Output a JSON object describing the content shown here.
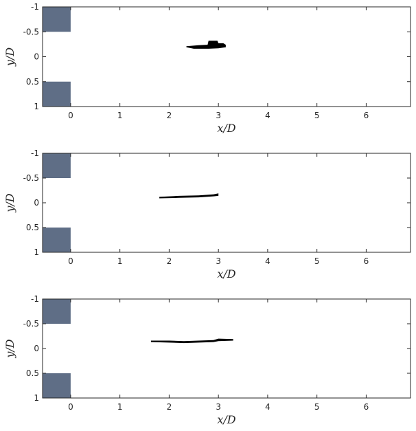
{
  "chart_data": [
    {
      "type": "area",
      "xlabel": "x/D",
      "ylabel": "y/D",
      "xlim": [
        -0.57,
        6.9
      ],
      "ylim": [
        -1,
        1
      ],
      "y_reversed": true,
      "x_ticks": [
        0,
        1,
        2,
        3,
        4,
        5,
        6
      ],
      "x_tick_labels": [
        "0",
        "1",
        "2",
        "3",
        "4",
        "5",
        "6"
      ],
      "y_ticks": [
        -1,
        -0.5,
        0,
        0.5,
        1
      ],
      "y_tick_labels": [
        "-1",
        "-0.5",
        "0",
        "0.5",
        "1"
      ],
      "grid": false,
      "blocks": [
        {
          "x": [
            -0.57,
            0
          ],
          "y": [
            -1,
            -0.5
          ],
          "color": "#5f6e86"
        },
        {
          "x": [
            -0.57,
            0
          ],
          "y": [
            0.5,
            1
          ],
          "color": "#5f6e86"
        }
      ],
      "region": {
        "color": "#000000",
        "upper": [
          [
            2.35,
            -0.21
          ],
          [
            2.6,
            -0.23
          ],
          [
            2.78,
            -0.24
          ],
          [
            2.8,
            -0.32
          ],
          [
            2.98,
            -0.32
          ],
          [
            3.0,
            -0.27
          ],
          [
            3.1,
            -0.27
          ],
          [
            3.15,
            -0.24
          ],
          [
            3.15,
            -0.19
          ],
          [
            3.0,
            -0.17
          ]
        ],
        "lower": [
          [
            2.35,
            -0.19
          ],
          [
            2.5,
            -0.16
          ],
          [
            2.8,
            -0.16
          ],
          [
            3.0,
            -0.17
          ]
        ]
      }
    },
    {
      "type": "area",
      "xlabel": "x/D",
      "ylabel": "y/D",
      "xlim": [
        -0.57,
        6.9
      ],
      "ylim": [
        -1,
        1
      ],
      "y_reversed": true,
      "x_ticks": [
        0,
        1,
        2,
        3,
        4,
        5,
        6
      ],
      "x_tick_labels": [
        "0",
        "1",
        "2",
        "3",
        "4",
        "5",
        "6"
      ],
      "y_ticks": [
        -1,
        -0.5,
        0,
        0.5,
        1
      ],
      "y_tick_labels": [
        "-1",
        "-0.5",
        "0",
        "0.5",
        "1"
      ],
      "grid": false,
      "blocks": [
        {
          "x": [
            -0.57,
            0
          ],
          "y": [
            -1,
            -0.5
          ],
          "color": "#5f6e86"
        },
        {
          "x": [
            -0.57,
            0
          ],
          "y": [
            0.5,
            1
          ],
          "color": "#5f6e86"
        }
      ],
      "region": {
        "color": "#000000",
        "upper": [
          [
            1.8,
            -0.12
          ],
          [
            2.2,
            -0.14
          ],
          [
            2.6,
            -0.15
          ],
          [
            2.9,
            -0.17
          ],
          [
            3.0,
            -0.19
          ]
        ],
        "lower": [
          [
            1.8,
            -0.09
          ],
          [
            2.2,
            -0.1
          ],
          [
            2.6,
            -0.11
          ],
          [
            2.9,
            -0.13
          ],
          [
            3.0,
            -0.14
          ]
        ]
      }
    },
    {
      "type": "area",
      "xlabel": "x/D",
      "ylabel": "y/D",
      "xlim": [
        -0.57,
        6.9
      ],
      "ylim": [
        -1,
        1
      ],
      "y_reversed": true,
      "x_ticks": [
        0,
        1,
        2,
        3,
        4,
        5,
        6
      ],
      "x_tick_labels": [
        "0",
        "1",
        "2",
        "3",
        "4",
        "5",
        "6"
      ],
      "y_ticks": [
        -1,
        -0.5,
        0,
        0.5,
        1
      ],
      "y_tick_labels": [
        "-1",
        "-0.5",
        "0",
        "0.5",
        "1"
      ],
      "grid": false,
      "blocks": [
        {
          "x": [
            -0.57,
            0
          ],
          "y": [
            -1,
            -0.5
          ],
          "color": "#5f6e86"
        },
        {
          "x": [
            -0.57,
            0
          ],
          "y": [
            0.5,
            1
          ],
          "color": "#5f6e86"
        }
      ],
      "region": {
        "color": "#000000",
        "upper": [
          [
            1.63,
            -0.16
          ],
          [
            2.0,
            -0.16
          ],
          [
            2.3,
            -0.15
          ],
          [
            2.6,
            -0.16
          ],
          [
            2.9,
            -0.17
          ],
          [
            3.0,
            -0.2
          ],
          [
            3.3,
            -0.19
          ]
        ],
        "lower": [
          [
            1.63,
            -0.13
          ],
          [
            2.0,
            -0.12
          ],
          [
            2.3,
            -0.11
          ],
          [
            2.6,
            -0.12
          ],
          [
            2.9,
            -0.13
          ],
          [
            3.0,
            -0.15
          ],
          [
            3.3,
            -0.16
          ]
        ]
      }
    }
  ]
}
